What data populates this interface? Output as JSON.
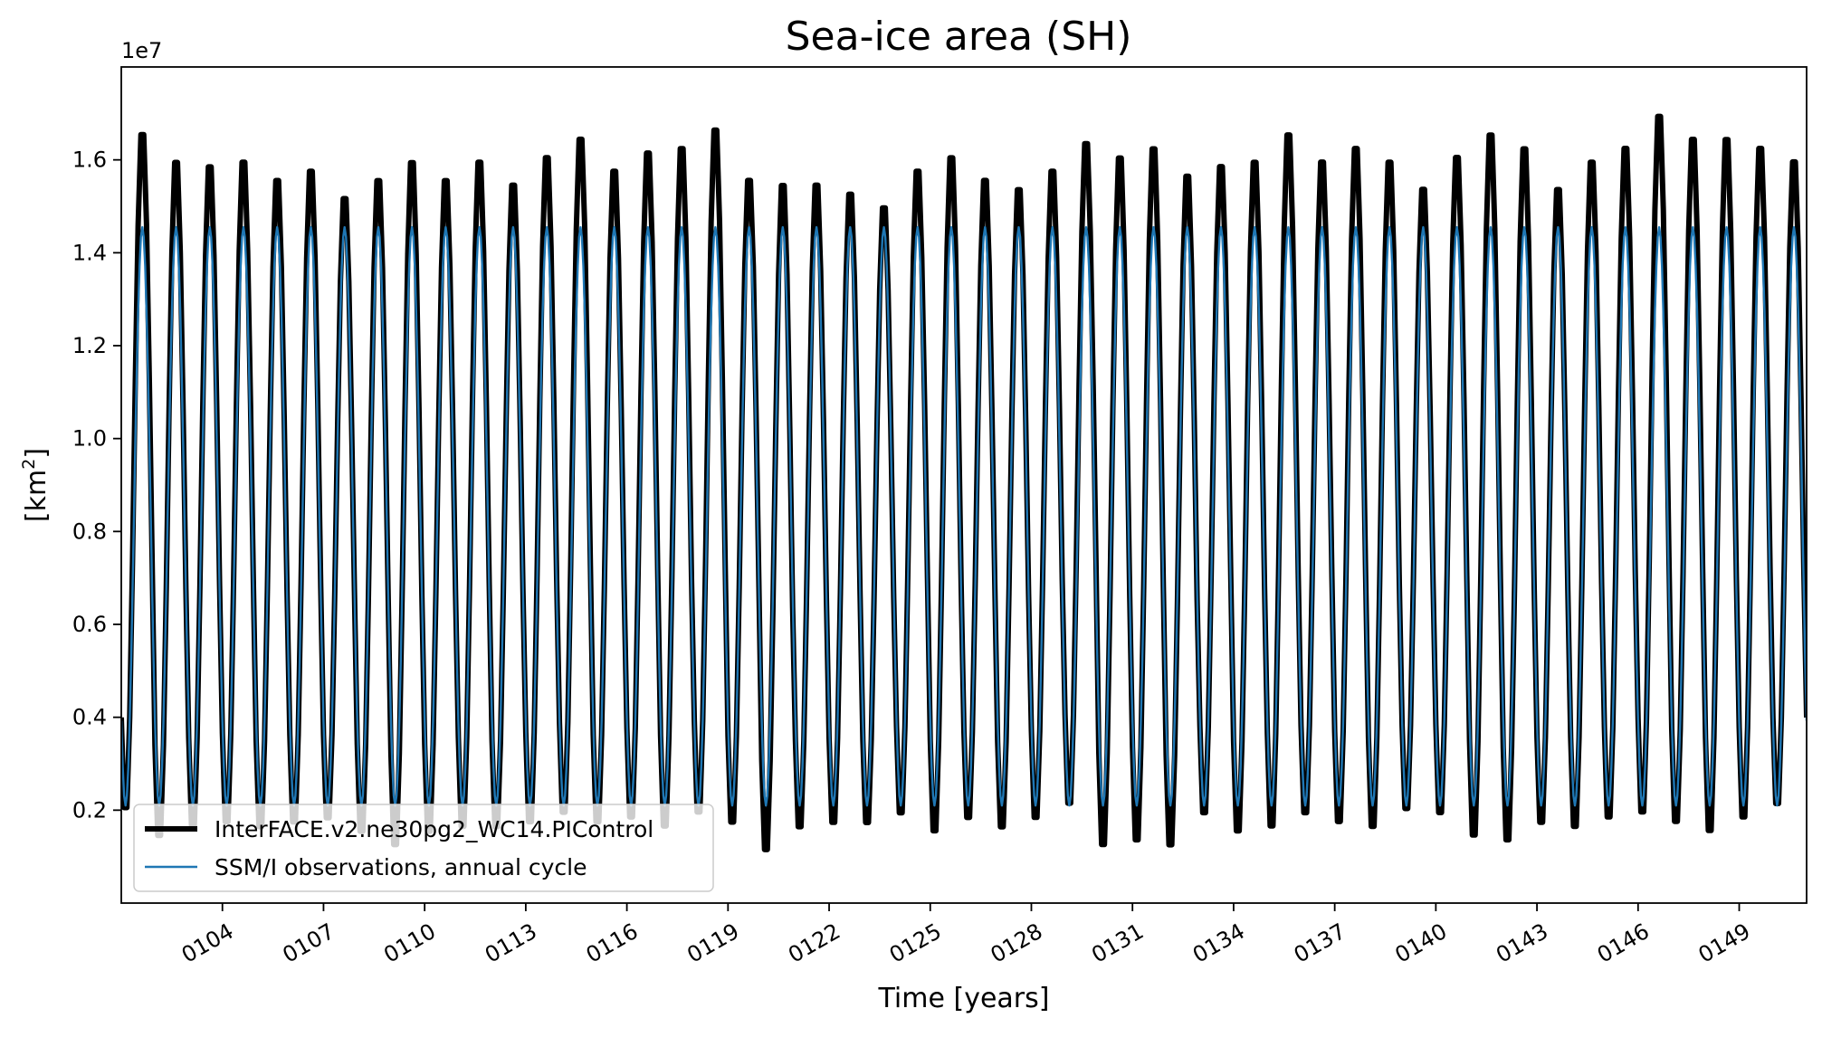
{
  "chart_data": {
    "type": "line",
    "title": "Sea-ice area (SH)",
    "xlabel": "Time [years]",
    "ylabel_prefix": "[km",
    "ylabel_superscript": "2",
    "ylabel_suffix": "]",
    "y_offset_text": "1e7",
    "xlim": [
      101,
      151
    ],
    "ylim": [
      0.0,
      1.8
    ],
    "y_ticks": [
      0.2,
      0.4,
      0.6,
      0.8,
      1.0,
      1.2,
      1.4,
      1.6
    ],
    "y_tick_labels": [
      "0.2",
      "0.4",
      "0.6",
      "0.8",
      "1.0",
      "1.2",
      "1.4",
      "1.6"
    ],
    "x_ticks": [
      104,
      107,
      110,
      113,
      116,
      119,
      122,
      125,
      128,
      131,
      134,
      137,
      140,
      143,
      146,
      149
    ],
    "x_tick_labels": [
      "0104",
      "0107",
      "0110",
      "0113",
      "0116",
      "0119",
      "0122",
      "0125",
      "0128",
      "0131",
      "0134",
      "0137",
      "0140",
      "0143",
      "0146",
      "0149"
    ],
    "legend_position": "lower left",
    "grid": false,
    "series": [
      {
        "name": "InterFACE.v2.ne30pg2_WC14.PIControl",
        "color": "#000000",
        "kind": "model-monthly",
        "start_year": 101,
        "annual_max": [
          1.68,
          1.62,
          1.61,
          1.62,
          1.58,
          1.6,
          1.54,
          1.58,
          1.62,
          1.58,
          1.62,
          1.57,
          1.63,
          1.67,
          1.6,
          1.64,
          1.65,
          1.69,
          1.58,
          1.57,
          1.57,
          1.55,
          1.52,
          1.6,
          1.63,
          1.58,
          1.56,
          1.6,
          1.66,
          1.63,
          1.65,
          1.59,
          1.61,
          1.62,
          1.68,
          1.62,
          1.65,
          1.62,
          1.56,
          1.63,
          1.68,
          1.65,
          1.56,
          1.62,
          1.65,
          1.72,
          1.67,
          1.67,
          1.65,
          1.62
        ],
        "annual_min": [
          0.18,
          0.12,
          0.14,
          0.15,
          0.14,
          0.15,
          0.16,
          0.13,
          0.1,
          0.13,
          0.14,
          0.14,
          0.15,
          0.17,
          0.15,
          0.16,
          0.14,
          0.17,
          0.15,
          0.09,
          0.14,
          0.15,
          0.15,
          0.17,
          0.13,
          0.16,
          0.14,
          0.16,
          0.19,
          0.1,
          0.11,
          0.1,
          0.17,
          0.13,
          0.14,
          0.17,
          0.15,
          0.14,
          0.18,
          0.17,
          0.12,
          0.11,
          0.15,
          0.14,
          0.16,
          0.17,
          0.15,
          0.13,
          0.16,
          0.19
        ]
      },
      {
        "name": "SSM/I observations, annual cycle",
        "color": "#1f77b4",
        "kind": "observed-climatology",
        "annual_max": 1.455,
        "annual_min": 0.21
      }
    ]
  }
}
